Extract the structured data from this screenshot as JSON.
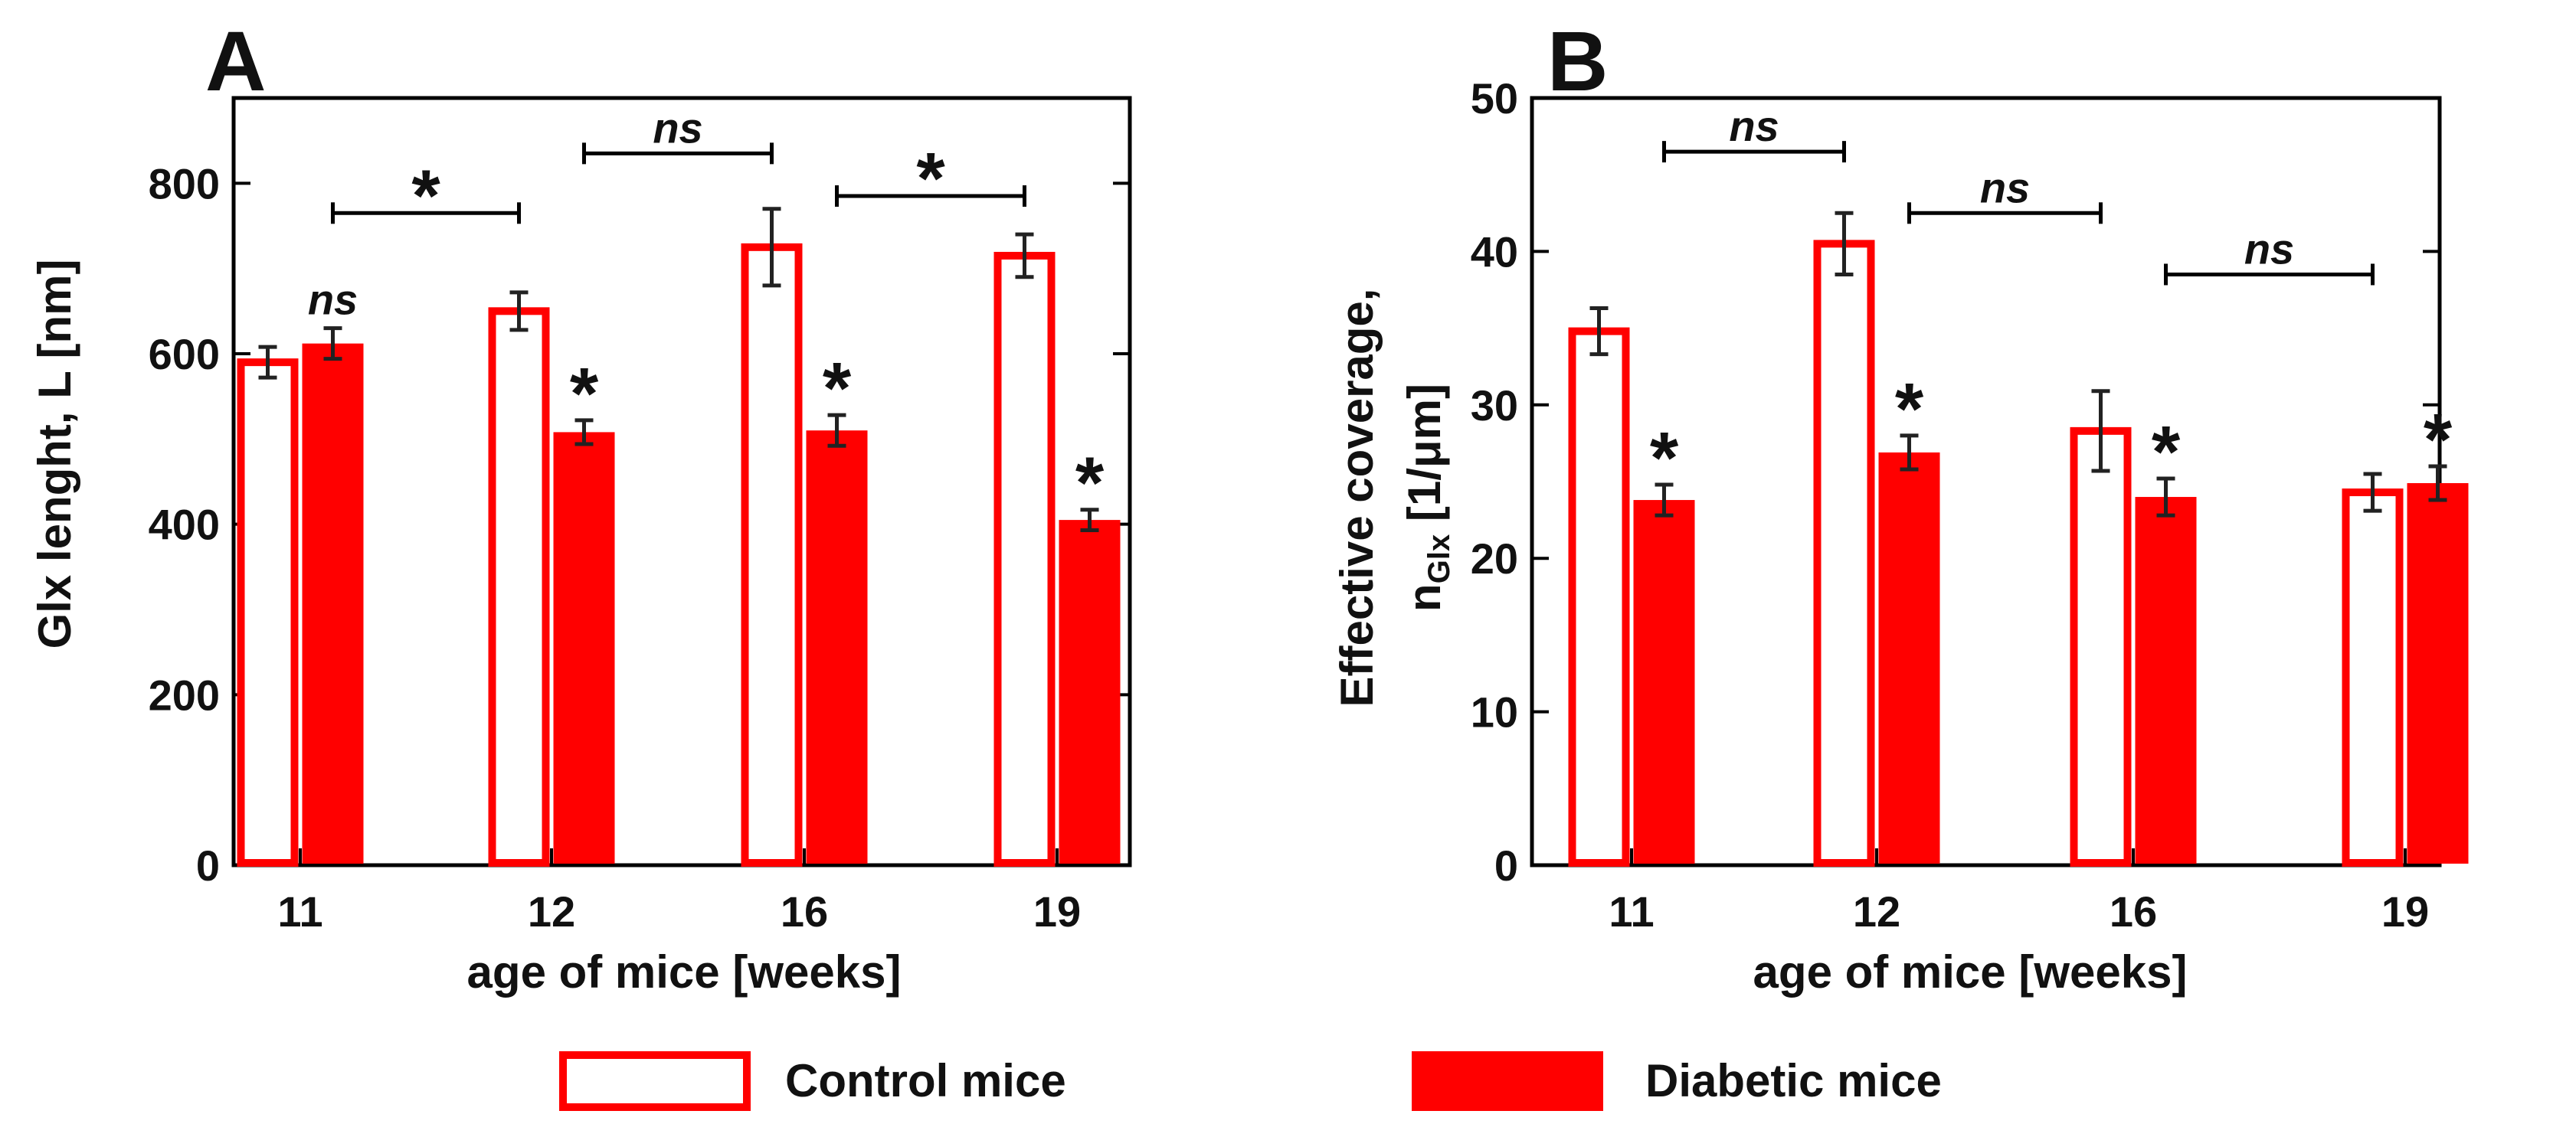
{
  "chart_data": [
    {
      "panel": "A",
      "type": "bar",
      "categories": [
        "11",
        "12",
        "16",
        "19"
      ],
      "xlabel": "age of mice [weeks]",
      "ylabel": "Glx lenght, L [nm]",
      "ylim": [
        0,
        900
      ],
      "yticks": [
        0,
        200,
        400,
        600,
        800
      ],
      "series": [
        {
          "name": "Control mice",
          "style": "outline",
          "values": [
            590,
            650,
            725,
            715
          ],
          "errors": [
            18,
            22,
            45,
            25
          ]
        },
        {
          "name": "Diabetic mice",
          "style": "filled",
          "values": [
            612,
            508,
            510,
            405
          ],
          "errors": [
            18,
            14,
            18,
            12
          ]
        }
      ],
      "bar_annotations": [
        {
          "category": "11",
          "series": "Diabetic mice",
          "text": "ns"
        },
        {
          "category": "12",
          "series": "Diabetic mice",
          "text": "*"
        },
        {
          "category": "16",
          "series": "Diabetic mice",
          "text": "*"
        },
        {
          "category": "19",
          "series": "Diabetic mice",
          "text": "*"
        }
      ],
      "comparisons": [
        {
          "from": "11",
          "to": "12",
          "level": 765,
          "text": "*"
        },
        {
          "from": "12",
          "to": "16",
          "level": 835,
          "text": "ns"
        },
        {
          "from": "16",
          "to": "19",
          "level": 785,
          "text": "*"
        }
      ]
    },
    {
      "panel": "B",
      "type": "bar",
      "categories": [
        "11",
        "12",
        "16",
        "19"
      ],
      "xlabel": "age of mice [weeks]",
      "ylabel_line1": "Effective coverage,",
      "ylabel_line2_symbol": "n",
      "ylabel_line2_subscript": "Glx",
      "ylabel_line2_rest": " [1/μm]",
      "ylim": [
        0,
        50
      ],
      "yticks": [
        0,
        10,
        20,
        30,
        40,
        50
      ],
      "series": [
        {
          "name": "Control mice",
          "style": "outline",
          "values": [
            34.8,
            40.5,
            28.3,
            24.3
          ],
          "errors": [
            1.5,
            2.0,
            2.6,
            1.2
          ]
        },
        {
          "name": "Diabetic mice",
          "style": "filled",
          "values": [
            23.8,
            26.9,
            24.0,
            24.9
          ],
          "errors": [
            1.0,
            1.1,
            1.2,
            1.1
          ]
        }
      ],
      "bar_annotations": [
        {
          "category": "11",
          "series": "Diabetic mice",
          "text": "*"
        },
        {
          "category": "12",
          "series": "Diabetic mice",
          "text": "*"
        },
        {
          "category": "16",
          "series": "Diabetic mice",
          "text": "*"
        },
        {
          "category": "19",
          "series": "Diabetic mice",
          "text": "*"
        }
      ],
      "comparisons": [
        {
          "from": "11",
          "to": "12",
          "level": 46.5,
          "text": "ns"
        },
        {
          "from": "12",
          "to": "16",
          "level": 42.5,
          "text": "ns"
        },
        {
          "from": "16",
          "to": "19",
          "level": 38.5,
          "text": "ns"
        }
      ]
    }
  ],
  "legend": {
    "items": [
      {
        "label": "Control mice",
        "style": "outline"
      },
      {
        "label": "Diabetic mice",
        "style": "filled"
      }
    ]
  },
  "colors": {
    "bar": "#ff0000",
    "error": "#222222",
    "axis": "#000000"
  }
}
